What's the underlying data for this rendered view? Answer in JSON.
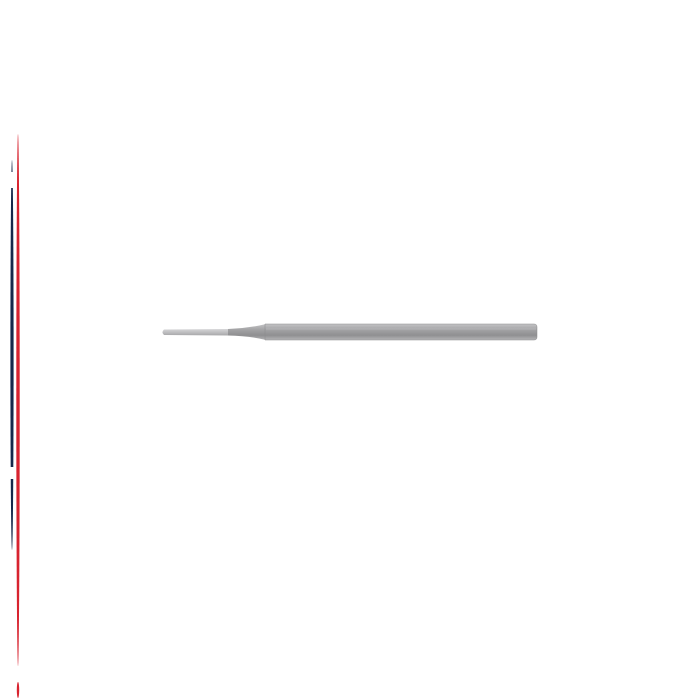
{
  "image": {
    "subject": "surgical-instrument",
    "colors": {
      "background": "#ffffff",
      "stripe_red": "#d8232f",
      "stripe_navy": "#15284b",
      "instrument_steel": "#9a9a9c"
    }
  }
}
